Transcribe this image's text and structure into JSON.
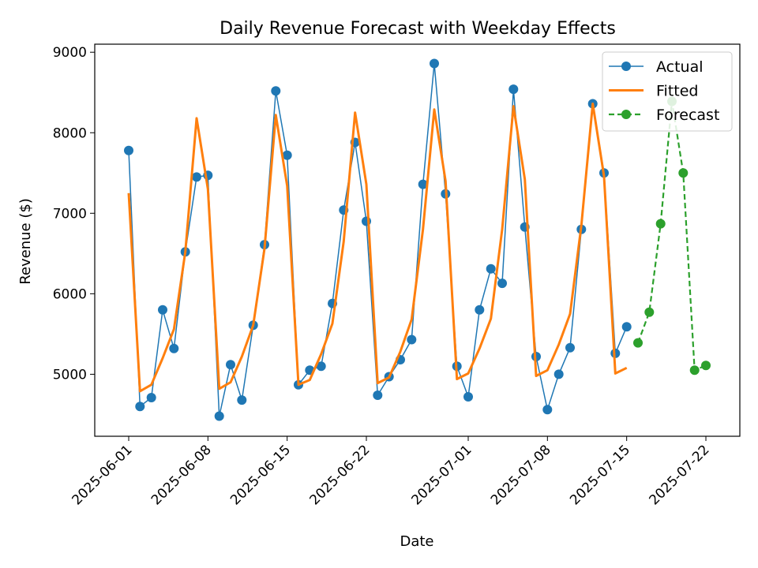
{
  "chart_data": {
    "type": "line",
    "title": "Daily Revenue Forecast with Weekday Effects",
    "xlabel": "Date",
    "ylabel": "Revenue ($)",
    "ylim": [
      4230,
      9100
    ],
    "xlim": [
      "2025-05-29",
      "2025-07-25"
    ],
    "x_ticks": [
      "2025-06-01",
      "2025-06-08",
      "2025-06-15",
      "2025-06-22",
      "2025-07-01",
      "2025-07-08",
      "2025-07-15",
      "2025-07-22"
    ],
    "y_ticks": [
      5000,
      6000,
      7000,
      8000,
      9000
    ],
    "grid": false,
    "legend_position": "top-right",
    "series": [
      {
        "name": "Actual",
        "color": "#1f77b4",
        "style": "solid-line-with-circle-markers",
        "start_date": "2025-06-01",
        "values": [
          7780,
          4600,
          4710,
          5800,
          5320,
          6520,
          7450,
          7470,
          4480,
          5120,
          4680,
          5610,
          6610,
          8520,
          7720,
          4870,
          5050,
          5100,
          5880,
          7040,
          7880,
          6900,
          4740,
          4970,
          5180,
          5430,
          7360,
          8860,
          7240,
          5100,
          4720,
          5800,
          6310,
          6130,
          8540,
          6830,
          5220,
          4560,
          5000,
          5330,
          6800,
          8360,
          7500,
          5260,
          5590
        ]
      },
      {
        "name": "Fitted",
        "color": "#ff7f0e",
        "style": "thick-solid-line",
        "start_date": "2025-06-01",
        "values": [
          7250,
          4790,
          4870,
          5200,
          5560,
          6520,
          8180,
          7300,
          4820,
          4900,
          5220,
          5610,
          6560,
          8220,
          7340,
          4870,
          4930,
          5250,
          5630,
          6650,
          8250,
          7360,
          4890,
          4960,
          5280,
          5680,
          6800,
          8290,
          7400,
          4940,
          5010,
          5320,
          5690,
          6800,
          8330,
          7420,
          4980,
          5050,
          5370,
          5750,
          6850,
          8360,
          7460,
          5010,
          5080
        ]
      },
      {
        "name": "Forecast",
        "color": "#2ca02c",
        "style": "dashed-line-with-circle-markers",
        "start_date": "2025-07-16",
        "values": [
          5390,
          5770,
          6870,
          8390,
          7500,
          5050,
          5110
        ]
      }
    ]
  }
}
